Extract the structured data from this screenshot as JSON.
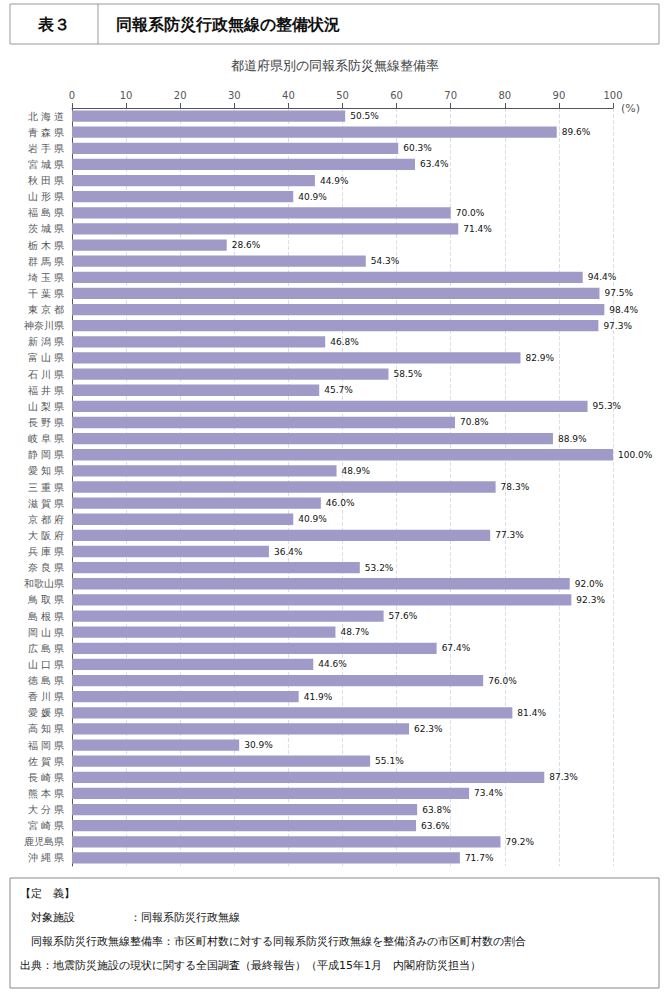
{
  "chart_data": {
    "type": "bar",
    "orientation": "horizontal",
    "header": [
      "表３",
      "同報系防災行政無線の整備状況"
    ],
    "title": "都道府県別の同報系防災無線整備率",
    "xlabel": "(%)",
    "categories": [
      "北 海 道",
      "青 森 県",
      "岩 手 県",
      "宮 城 県",
      "秋 田 県",
      "山 形 県",
      "福 島 県",
      "茨 城 県",
      "栃 木 県",
      "群 馬 県",
      "埼 玉 県",
      "千 葉 県",
      "東 京 都",
      "神奈川県",
      "新 潟 県",
      "富 山 県",
      "石 川 県",
      "福 井 県",
      "山 梨 県",
      "長 野 県",
      "岐 阜 県",
      "静 岡 県",
      "愛 知 県",
      "三 重 県",
      "滋 賀 県",
      "京 都 府",
      "大 阪 府",
      "兵 庫 県",
      "奈 良 県",
      "和歌山県",
      "鳥 取 県",
      "島 根 県",
      "岡 山 県",
      "広 島 県",
      "山 口 県",
      "徳 島 県",
      "香 川 県",
      "愛 媛 県",
      "高 知 県",
      "福 岡 県",
      "佐 賀 県",
      "長 崎 県",
      "熊 本 県",
      "大 分 県",
      "宮 崎 県",
      "鹿児島県",
      "沖 縄 県"
    ],
    "values": [
      50.5,
      89.6,
      60.3,
      63.4,
      44.9,
      40.9,
      70.0,
      71.4,
      28.6,
      54.3,
      94.4,
      97.5,
      98.4,
      97.3,
      46.8,
      82.9,
      58.5,
      45.7,
      95.3,
      70.8,
      88.9,
      100.0,
      48.9,
      78.3,
      46.0,
      40.9,
      77.3,
      36.4,
      53.2,
      92.0,
      92.3,
      57.6,
      48.7,
      67.4,
      44.6,
      76.0,
      41.9,
      81.4,
      62.3,
      30.9,
      55.1,
      87.3,
      73.4,
      63.8,
      63.6,
      79.2,
      71.7
    ],
    "value_labels": [
      "50.5%",
      "89.6%",
      "60.3%",
      "63.4%",
      "44.9%",
      "40.9%",
      "70.0%",
      "71.4%",
      "28.6%",
      "54.3%",
      "94.4%",
      "97.5%",
      "98.4%",
      "97.3%",
      "46.8%",
      "82.9%",
      "58.5%",
      "45.7%",
      "95.3%",
      "70.8%",
      "88.9%",
      "100.0%",
      "48.9%",
      "78.3%",
      "46.0%",
      "40.9%",
      "77.3%",
      "36.4%",
      "53.2%",
      "92.0%",
      "92.3%",
      "57.6%",
      "48.7%",
      "67.4%",
      "44.6%",
      "76.0%",
      "41.9%",
      "81.4%",
      "62.3%",
      "30.9%",
      "55.1%",
      "87.3%",
      "73.4%",
      "63.8%",
      "63.6%",
      "79.2%",
      "71.7%"
    ],
    "color": "#a09ac8",
    "xlim": [
      0,
      100
    ],
    "xticks": [
      0,
      10,
      20,
      30,
      40,
      50,
      60,
      70,
      80,
      90,
      100
    ],
    "grid": true,
    "data_labels": true,
    "footnotes": [
      "【定　義】",
      "　対象施設　　　　　：同報系防災行政無線",
      "　同報系防災行政無線整備率：市区町村数に対する同報系防災行政無線を整備済みの市区町村数の割合",
      "出典：地震防災施設の現状に関する全国調査（最終報告）（平成15年1月　内閣府防災担当）"
    ]
  }
}
